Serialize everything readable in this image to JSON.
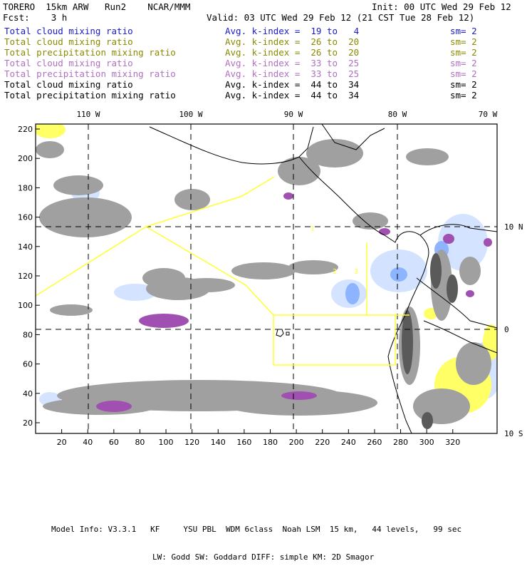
{
  "header": {
    "model": "TORERO  15km ARW   Run2    NCAR/MMM",
    "init": "Init: 00 UTC Wed 29 Feb 12",
    "fcst": "Fcst:    3 h",
    "valid": "Valid: 03 UTC Wed 29 Feb 12 (21 CST Tue 28 Feb 12)"
  },
  "fields": [
    {
      "name": "Total cloud mixing ratio",
      "index": "Avg. k-index =  19 to   4",
      "sm": "sm= 2",
      "color": "#1a1acc"
    },
    {
      "name": "Total cloud mixing ratio",
      "index": "Avg. k-index =  26 to  20",
      "sm": "sm= 2",
      "color": "#8a8a00"
    },
    {
      "name": "Total precipitation mixing ratio",
      "index": "Avg. k-index =  26 to  20",
      "sm": "sm= 2",
      "color": "#8a8a00"
    },
    {
      "name": "Total cloud mixing ratio",
      "index": "Avg. k-index =  33 to  25",
      "sm": "sm= 2",
      "color": "#b070c0"
    },
    {
      "name": "Total precipitation mixing ratio",
      "index": "Avg. k-index =  33 to  25",
      "sm": "sm= 2",
      "color": "#b070c0"
    },
    {
      "name": "Total cloud mixing ratio",
      "index": "Avg. k-index =  44 to  34",
      "sm": "sm= 2",
      "color": "#000000"
    },
    {
      "name": "Total precipitation mixing ratio",
      "index": "Avg. k-index =  44 to  34",
      "sm": "sm= 2",
      "color": "#000000"
    }
  ],
  "map": {
    "lon_labels": [
      "110 W",
      "100 W",
      "90 W",
      "80 W",
      "70 W"
    ],
    "lat_labels": [
      "10 N",
      "0",
      "10 S"
    ],
    "x_ticks": [
      "20",
      "40",
      "60",
      "80",
      "100",
      "120",
      "140",
      "160",
      "180",
      "200",
      "220",
      "240",
      "260",
      "280",
      "300",
      "320"
    ],
    "y_ticks": [
      "220",
      "200",
      "180",
      "160",
      "140",
      "120",
      "100",
      "80",
      "60",
      "40",
      "20"
    ],
    "region_labels": [
      "1",
      "2",
      "3"
    ],
    "colors": {
      "frame": "#000000",
      "grid": "#000000",
      "boxes": "#ffff33",
      "cloud": "#999999",
      "light_cloud": "#d8d8d8",
      "blue": "#9fc4ff",
      "purple": "#a050b0",
      "yellow": "#ffff66"
    }
  },
  "footer": {
    "line1": "Model Info: V3.3.1   KF     YSU PBL  WDM 6class  Noah LSM  15 km,   44 levels,   99 sec",
    "line2": "LW: Godd SW: Goddard DIFF: simple KM: 2D Smagor"
  }
}
